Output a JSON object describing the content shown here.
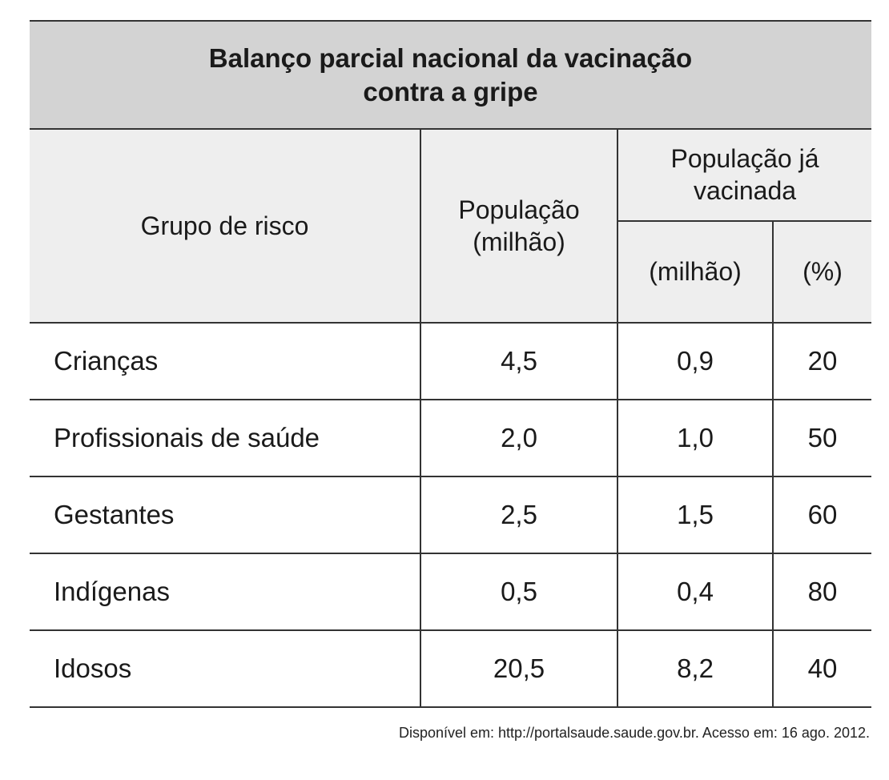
{
  "title": {
    "line1": "Balanço parcial nacional da vacinação",
    "line2": "contra a gripe"
  },
  "headers": {
    "group": "Grupo de risco",
    "population_line1": "População",
    "population_line2": "(milhão)",
    "vaccinated_line1": "População já",
    "vaccinated_line2": "vacinada",
    "vaccinated_millions": "(milhão)",
    "vaccinated_percent": "(%)"
  },
  "rows": [
    {
      "group": "Crianças",
      "population": "4,5",
      "vaccinated": "0,9",
      "percent": "20"
    },
    {
      "group": "Profissionais de saúde",
      "population": "2,0",
      "vaccinated": "1,0",
      "percent": "50"
    },
    {
      "group": "Gestantes",
      "population": "2,5",
      "vaccinated": "1,5",
      "percent": "60"
    },
    {
      "group": "Indígenas",
      "population": "0,5",
      "vaccinated": "0,4",
      "percent": "80"
    },
    {
      "group": "Idosos",
      "population": "20,5",
      "vaccinated": "8,2",
      "percent": "40"
    }
  ],
  "source": "Disponível em: http://portalsaude.saude.gov.br. Acesso em: 16 ago. 2012."
}
